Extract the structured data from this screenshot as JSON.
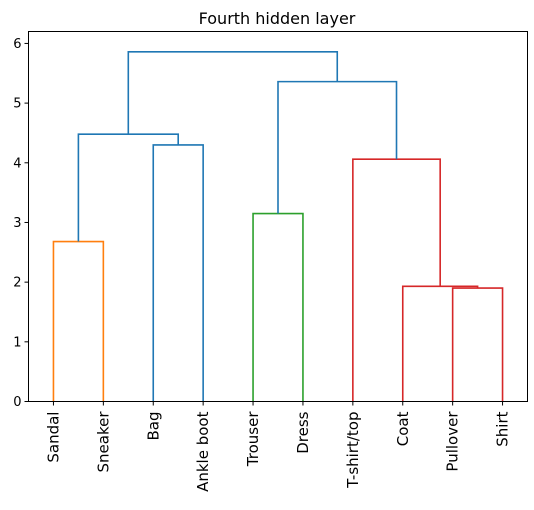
{
  "chart_data": {
    "type": "dendrogram",
    "title": "Fourth hidden layer",
    "leaves": [
      "Sandal",
      "Sneaker",
      "Bag",
      "Ankle boot",
      "Trouser",
      "Dress",
      "T-shirt/top",
      "Coat",
      "Pullover",
      "Shirt"
    ],
    "ylim": [
      0,
      6.2
    ],
    "yticks": [
      0,
      1,
      2,
      3,
      4,
      5,
      6
    ],
    "grid": false,
    "links": [
      {
        "left": {
          "leaf": 0
        },
        "right": {
          "leaf": 1
        },
        "height": 2.68,
        "color": "#ff7f0e"
      },
      {
        "left": {
          "leaf": 2
        },
        "right": {
          "leaf": 3
        },
        "height": 4.3,
        "color": "#1f77b4"
      },
      {
        "left": {
          "leaf": 4
        },
        "right": {
          "leaf": 5
        },
        "height": 3.15,
        "color": "#2ca02c"
      },
      {
        "left": {
          "leaf": 8
        },
        "right": {
          "leaf": 9
        },
        "height": 1.9,
        "color": "#d62728"
      },
      {
        "left": {
          "leaf": 7
        },
        "right": {
          "node": 3
        },
        "height": 1.93,
        "color": "#d62728"
      },
      {
        "left": {
          "leaf": 6
        },
        "right": {
          "node": 4
        },
        "height": 4.06,
        "color": "#d62728"
      },
      {
        "left": {
          "node": 0
        },
        "right": {
          "node": 1
        },
        "height": 4.48,
        "color": "#1f77b4"
      },
      {
        "left": {
          "node": 2
        },
        "right": {
          "node": 5
        },
        "height": 5.36,
        "color": "#1f77b4"
      },
      {
        "left": {
          "node": 6
        },
        "right": {
          "node": 7
        },
        "height": 5.86,
        "color": "#1f77b4"
      }
    ]
  }
}
